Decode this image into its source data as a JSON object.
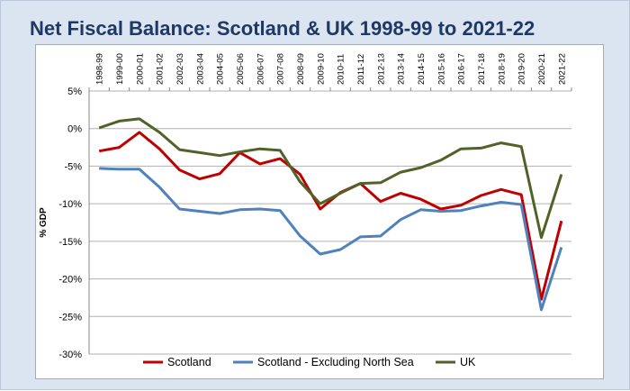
{
  "chart_data": {
    "type": "line",
    "title": "Net Fiscal Balance: Scotland & UK 1998-99 to 2021-22",
    "ylabel": "% GDP",
    "xlabel": "",
    "ylim": [
      -30,
      5
    ],
    "yticks": [
      5,
      0,
      -5,
      -10,
      -15,
      -20,
      -25,
      -30
    ],
    "ytick_labels": [
      "5%",
      "0%",
      "-5%",
      "-10%",
      "-15%",
      "-20%",
      "-25%",
      "-30%"
    ],
    "grid": "horizontal",
    "legend_position": "bottom",
    "categories": [
      "1998-99",
      "1999-00",
      "2000-01",
      "2001-02",
      "2002-03",
      "2003-04",
      "2004-05",
      "2005-06",
      "2006-07",
      "2007-08",
      "2008-09",
      "2009-10",
      "2010-11",
      "2011-12",
      "2012-13",
      "2013-14",
      "2014-15",
      "2015-16",
      "2016-17",
      "2017-18",
      "2018-19",
      "2019-20",
      "2020-21",
      "2021-22"
    ],
    "series": [
      {
        "name": "Scotland",
        "color": "#c00000",
        "values": [
          -3.0,
          -2.5,
          -0.5,
          -2.7,
          -5.5,
          -6.7,
          -6.0,
          -3.2,
          -4.7,
          -4.0,
          -6.1,
          -10.7,
          -8.5,
          -7.3,
          -9.7,
          -8.6,
          -9.4,
          -10.7,
          -10.2,
          -8.9,
          -8.1,
          -8.8,
          -22.7,
          -12.3
        ]
      },
      {
        "name": "Scotland - Excluding North Sea",
        "color": "#4f81bd",
        "values": [
          -5.3,
          -5.4,
          -5.4,
          -7.8,
          -10.7,
          -11.0,
          -11.3,
          -10.8,
          -10.7,
          -10.9,
          -14.3,
          -16.7,
          -16.1,
          -14.4,
          -14.3,
          -12.1,
          -10.8,
          -11.0,
          -10.9,
          -10.3,
          -9.8,
          -10.1,
          -24.1,
          -15.8
        ]
      },
      {
        "name": "UK",
        "color": "#4f6228",
        "values": [
          0.1,
          1.0,
          1.3,
          -0.5,
          -2.8,
          -3.2,
          -3.6,
          -3.1,
          -2.7,
          -2.9,
          -7.1,
          -10.0,
          -8.6,
          -7.3,
          -7.2,
          -5.8,
          -5.2,
          -4.2,
          -2.7,
          -2.6,
          -1.9,
          -2.4,
          -14.5,
          -6.1
        ]
      }
    ]
  }
}
